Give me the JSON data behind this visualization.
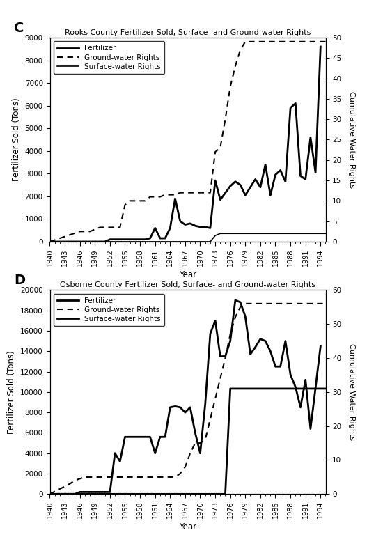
{
  "panel_C": {
    "title": "Rooks County Fertilizer Sold, Surface- and Ground-water Rights",
    "label": "C",
    "xlim": [
      1940,
      1995
    ],
    "ylim_left": [
      0,
      9000
    ],
    "ylim_right": [
      0,
      50
    ],
    "yticks_left": [
      0,
      1000,
      2000,
      3000,
      4000,
      5000,
      6000,
      7000,
      8000,
      9000
    ],
    "yticks_right": [
      0,
      5,
      10,
      15,
      20,
      25,
      30,
      35,
      40,
      45,
      50
    ],
    "ylabel_left": "Fertilizer Sold (Tons)",
    "ylabel_right": "Cumulative Water Rights",
    "xlabel": "Year",
    "xticks": [
      1940,
      1943,
      1946,
      1949,
      1952,
      1955,
      1958,
      1961,
      1964,
      1967,
      1970,
      1973,
      1976,
      1979,
      1982,
      1985,
      1988,
      1991,
      1994
    ],
    "fertilizer_years": [
      1940,
      1941,
      1942,
      1943,
      1944,
      1945,
      1946,
      1947,
      1948,
      1949,
      1950,
      1951,
      1952,
      1953,
      1954,
      1955,
      1956,
      1957,
      1958,
      1959,
      1960,
      1961,
      1962,
      1963,
      1964,
      1965,
      1966,
      1967,
      1968,
      1969,
      1970,
      1971,
      1972,
      1973,
      1974,
      1975,
      1976,
      1977,
      1978,
      1979,
      1980,
      1981,
      1982,
      1983,
      1984,
      1985,
      1986,
      1987,
      1988,
      1989,
      1990,
      1991,
      1992,
      1993,
      1994
    ],
    "fertilizer_values": [
      0,
      0,
      0,
      0,
      0,
      0,
      0,
      0,
      0,
      0,
      0,
      0,
      100,
      100,
      100,
      100,
      100,
      100,
      100,
      100,
      150,
      600,
      150,
      150,
      600,
      1900,
      900,
      750,
      800,
      700,
      650,
      650,
      600,
      2700,
      1850,
      2150,
      2450,
      2650,
      2500,
      2050,
      2400,
      2750,
      2400,
      3400,
      2050,
      2950,
      3150,
      2650,
      5900,
      6100,
      2900,
      2750,
      4600,
      3050,
      8600
    ],
    "groundwater_years": [
      1940,
      1946,
      1947,
      1948,
      1949,
      1950,
      1951,
      1952,
      1953,
      1954,
      1955,
      1956,
      1957,
      1958,
      1959,
      1960,
      1961,
      1962,
      1963,
      1964,
      1965,
      1966,
      1967,
      1968,
      1969,
      1970,
      1971,
      1972,
      1973,
      1974,
      1975,
      1976,
      1977,
      1978,
      1979,
      1980,
      1981,
      1982,
      1983,
      1984,
      1985,
      1986,
      1987,
      1988,
      1989,
      1990,
      1991,
      1992,
      1993,
      1994,
      1995
    ],
    "groundwater_values": [
      0,
      2.5,
      2.5,
      2.5,
      3.0,
      3.5,
      3.5,
      3.5,
      3.5,
      3.5,
      9,
      10,
      10,
      10,
      10,
      11,
      11,
      11,
      11.5,
      11.5,
      11.5,
      12,
      12,
      12,
      12,
      12,
      12,
      12,
      22,
      23,
      30,
      38,
      43,
      47,
      49,
      49,
      49,
      49,
      49,
      49,
      49,
      49,
      49,
      49,
      49,
      49,
      49,
      49,
      49,
      49,
      49
    ],
    "surfacewater_years": [
      1940,
      1960,
      1961,
      1962,
      1963,
      1964,
      1965,
      1966,
      1967,
      1968,
      1969,
      1970,
      1971,
      1972,
      1973,
      1974,
      1975,
      1976,
      1977,
      1978,
      1979,
      1980,
      1981,
      1982,
      1983,
      1984,
      1985,
      1986,
      1987,
      1988,
      1989,
      1990,
      1991,
      1992,
      1993,
      1994,
      1995
    ],
    "surfacewater_values": [
      0,
      0,
      0,
      0,
      0,
      0,
      0,
      0,
      0,
      0,
      0,
      0,
      0,
      0,
      1.5,
      2,
      2,
      2,
      2,
      2,
      2,
      2,
      2,
      2,
      2,
      2,
      2,
      2,
      2,
      2,
      2,
      2,
      2,
      2,
      2,
      2,
      2
    ]
  },
  "panel_D": {
    "title": "Osborne County Fertilizer Sold, Surface- and Ground-water Rights",
    "label": "D",
    "xlim": [
      1940,
      1995
    ],
    "ylim_left": [
      0,
      20000
    ],
    "ylim_right": [
      0,
      60
    ],
    "yticks_left": [
      0,
      2000,
      4000,
      6000,
      8000,
      10000,
      12000,
      14000,
      16000,
      18000,
      20000
    ],
    "yticks_right": [
      0,
      10,
      20,
      30,
      40,
      50,
      60
    ],
    "ylabel_left": "Fertilizer Sold (Tons)",
    "ylabel_right": "Cumulative Water Rights",
    "xlabel": "Year",
    "xticks": [
      1940,
      1943,
      1946,
      1949,
      1952,
      1955,
      1958,
      1961,
      1964,
      1967,
      1970,
      1973,
      1976,
      1979,
      1982,
      1985,
      1988,
      1991,
      1994
    ],
    "fertilizer_years": [
      1940,
      1941,
      1942,
      1943,
      1944,
      1945,
      1946,
      1947,
      1948,
      1949,
      1950,
      1951,
      1952,
      1953,
      1954,
      1955,
      1956,
      1957,
      1958,
      1959,
      1960,
      1961,
      1962,
      1963,
      1964,
      1965,
      1966,
      1967,
      1968,
      1969,
      1970,
      1971,
      1972,
      1973,
      1974,
      1975,
      1976,
      1977,
      1978,
      1979,
      1980,
      1981,
      1982,
      1983,
      1984,
      1985,
      1986,
      1987,
      1988,
      1989,
      1990,
      1991,
      1992,
      1993,
      1994
    ],
    "fertilizer_values": [
      0,
      0,
      0,
      0,
      0,
      0,
      200,
      200,
      200,
      200,
      200,
      200,
      200,
      4000,
      3200,
      5600,
      5600,
      5600,
      5600,
      5600,
      5600,
      4000,
      5600,
      5600,
      8500,
      8600,
      8500,
      8000,
      8500,
      6000,
      4000,
      8800,
      15700,
      17000,
      13500,
      13500,
      15000,
      19000,
      18800,
      17400,
      13700,
      14400,
      15200,
      15000,
      14000,
      12500,
      12500,
      15000,
      11700,
      10500,
      8500,
      11200,
      6400,
      10400,
      14500
    ],
    "groundwater_years": [
      1940,
      1944,
      1945,
      1946,
      1947,
      1948,
      1949,
      1950,
      1951,
      1952,
      1953,
      1954,
      1955,
      1956,
      1957,
      1958,
      1959,
      1960,
      1961,
      1962,
      1963,
      1964,
      1965,
      1966,
      1967,
      1968,
      1969,
      1970,
      1971,
      1972,
      1973,
      1974,
      1975,
      1976,
      1977,
      1978,
      1979,
      1980,
      1981,
      1982,
      1983,
      1984,
      1985,
      1986,
      1987,
      1988,
      1989,
      1990,
      1991,
      1992,
      1993,
      1994,
      1995
    ],
    "groundwater_values": [
      0,
      3,
      4,
      4.5,
      5,
      5,
      5,
      5,
      5,
      5,
      5,
      5,
      5,
      5,
      5,
      5,
      5,
      5,
      5,
      5,
      5,
      5,
      5,
      6,
      8,
      12,
      15,
      15,
      16,
      22,
      28,
      34,
      40,
      47,
      52,
      55,
      56,
      56,
      56,
      56,
      56,
      56,
      56,
      56,
      56,
      56,
      56,
      56,
      56,
      56,
      56,
      56,
      56
    ],
    "surfacewater_years": [
      1940,
      1946,
      1947,
      1948,
      1949,
      1950,
      1951,
      1952,
      1953,
      1954,
      1955,
      1956,
      1957,
      1958,
      1959,
      1960,
      1961,
      1962,
      1963,
      1964,
      1965,
      1966,
      1967,
      1968,
      1969,
      1970,
      1971,
      1972,
      1973,
      1974,
      1975,
      1976,
      1977,
      1978,
      1979,
      1980,
      1981,
      1982,
      1983,
      1984,
      1985,
      1986,
      1987,
      1988,
      1989,
      1990,
      1991,
      1992,
      1993,
      1994,
      1995
    ],
    "surfacewater_values": [
      0,
      0,
      0,
      0,
      0,
      0,
      0,
      0,
      0,
      0,
      0,
      0,
      0,
      0,
      0,
      0,
      0,
      0,
      0,
      0,
      0,
      0,
      0,
      0,
      0,
      0,
      0,
      0,
      0,
      0,
      0,
      31,
      31,
      31,
      31,
      31,
      31,
      31,
      31,
      31,
      31,
      31,
      31,
      31,
      31,
      31,
      31,
      31,
      31,
      31,
      31
    ]
  }
}
